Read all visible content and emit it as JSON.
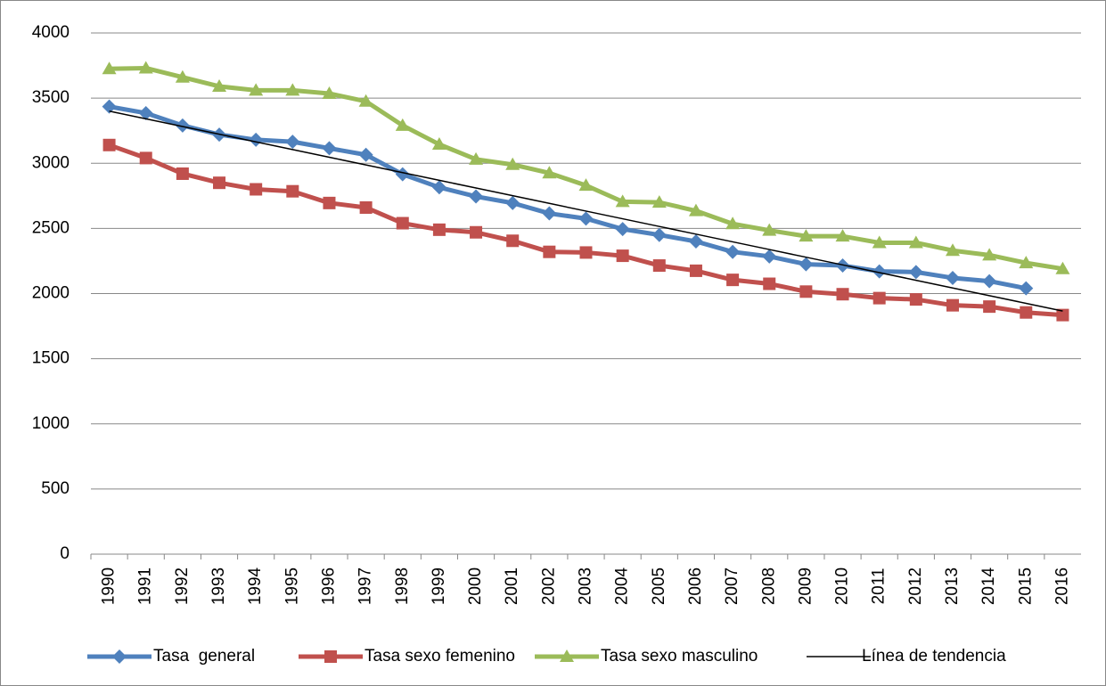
{
  "chart_data": {
    "type": "line",
    "categories": [
      "1990",
      "1991",
      "1992",
      "1993",
      "1994",
      "1995",
      "1996",
      "1997",
      "1998",
      "1999",
      "2000",
      "2001",
      "2002",
      "2003",
      "2004",
      "2005",
      "2006",
      "2007",
      "2008",
      "2009",
      "2010",
      "2011",
      "2012",
      "2013",
      "2014",
      "2015",
      "2016"
    ],
    "ylim": [
      0,
      4000
    ],
    "yticks": [
      0,
      500,
      1000,
      1500,
      2000,
      2500,
      3000,
      3500,
      4000
    ],
    "grid": true,
    "legend": "bottom",
    "series": [
      {
        "name": "Tasa  general",
        "color": "#4f81bd",
        "marker": "diamond",
        "values": [
          3435,
          3385,
          3290,
          3220,
          3180,
          3165,
          3115,
          3065,
          2915,
          2815,
          2745,
          2695,
          2615,
          2575,
          2495,
          2450,
          2400,
          2320,
          2285,
          2225,
          2215,
          2170,
          2165,
          2120,
          2095,
          2040,
          null
        ]
      },
      {
        "name": "Tasa sexo femenino",
        "color": "#c0504d",
        "marker": "square",
        "values": [
          3140,
          3040,
          2920,
          2850,
          2800,
          2785,
          2695,
          2660,
          2540,
          2490,
          2470,
          2405,
          2320,
          2315,
          2290,
          2215,
          2175,
          2105,
          2075,
          2015,
          1995,
          1965,
          1955,
          1910,
          1900,
          1855,
          1835
        ]
      },
      {
        "name": "Tasa sexo masculino",
        "color": "#9bbb59",
        "marker": "triangle",
        "values": [
          3725,
          3730,
          3660,
          3590,
          3560,
          3560,
          3535,
          3475,
          3290,
          3145,
          3030,
          2990,
          2925,
          2830,
          2705,
          2700,
          2635,
          2535,
          2485,
          2440,
          2440,
          2390,
          2390,
          2330,
          2295,
          2235,
          2190
        ]
      },
      {
        "name": "Línea de tendencia",
        "color": "#000000",
        "marker": "none",
        "values": [
          3400,
          3341,
          3282,
          3223,
          3164,
          3105,
          3046,
          2987,
          2928,
          2869,
          2810,
          2751,
          2692,
          2633,
          2574,
          2515,
          2456,
          2397,
          2338,
          2279,
          2220,
          2161,
          2102,
          2043,
          1984,
          1925,
          1866
        ]
      }
    ]
  }
}
